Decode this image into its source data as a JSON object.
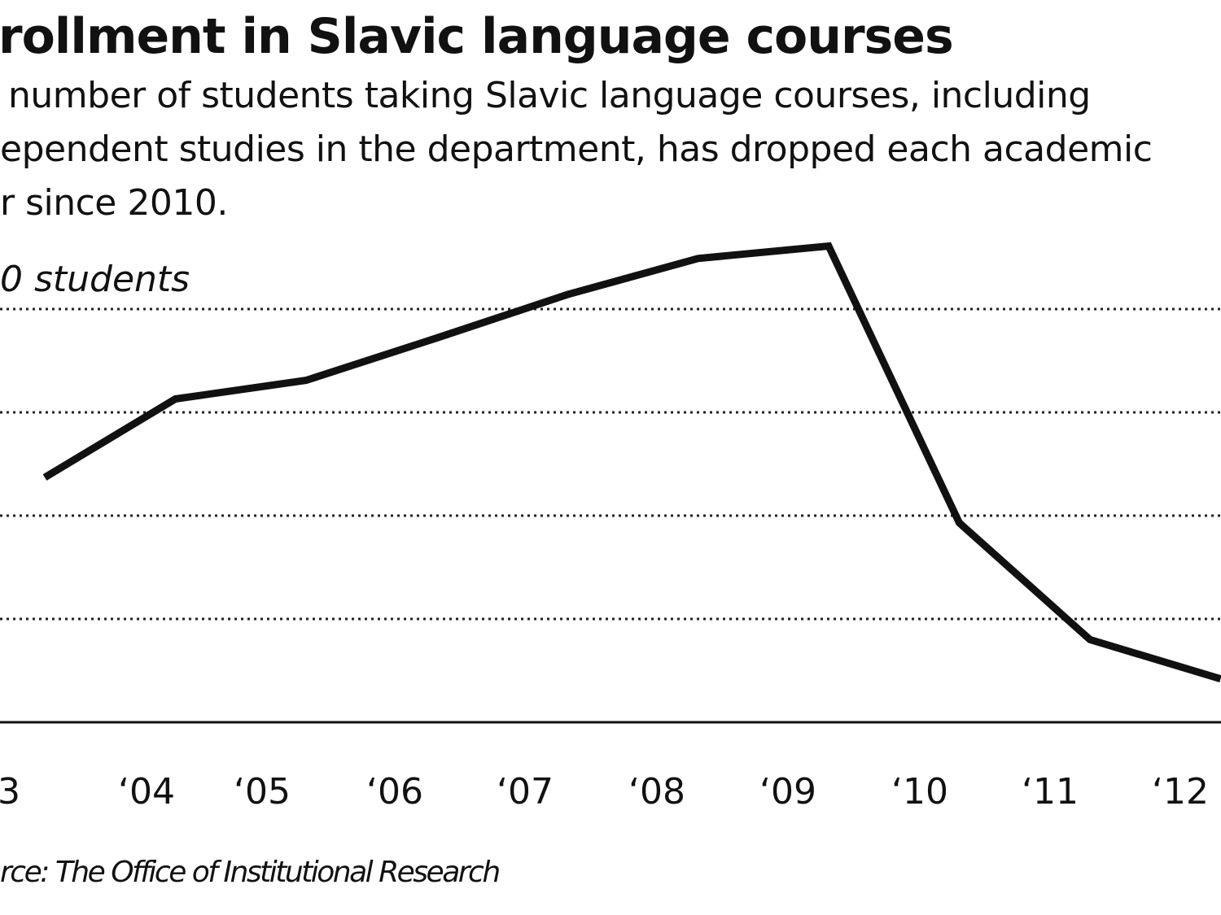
{
  "chart_data": {
    "type": "line",
    "title": "rollment in Slavic language courses",
    "subtitle_lines": [
      " number of students taking Slavic language courses, including",
      "ependent studies in the department, has dropped each academic",
      "r since 2010."
    ],
    "ylabel": "0 students",
    "source": "rce:  The Office of Institutional Research",
    "categories": [
      "3",
      "‘04",
      "‘05",
      "‘06",
      "‘07",
      "‘08",
      "‘09",
      "‘10",
      "‘11",
      "‘12"
    ],
    "values": [
      2.37,
      3.13,
      3.31,
      3.72,
      4.14,
      4.49,
      4.61,
      1.93,
      0.8,
      0.42
    ],
    "value_units": "gridline steps above baseline (scale numbers cropped)",
    "gridlines": [
      1,
      2,
      3,
      4
    ],
    "ylim": [
      0,
      4.8
    ],
    "grid": true,
    "grid_style": "dotted",
    "line_color": "#111111"
  }
}
